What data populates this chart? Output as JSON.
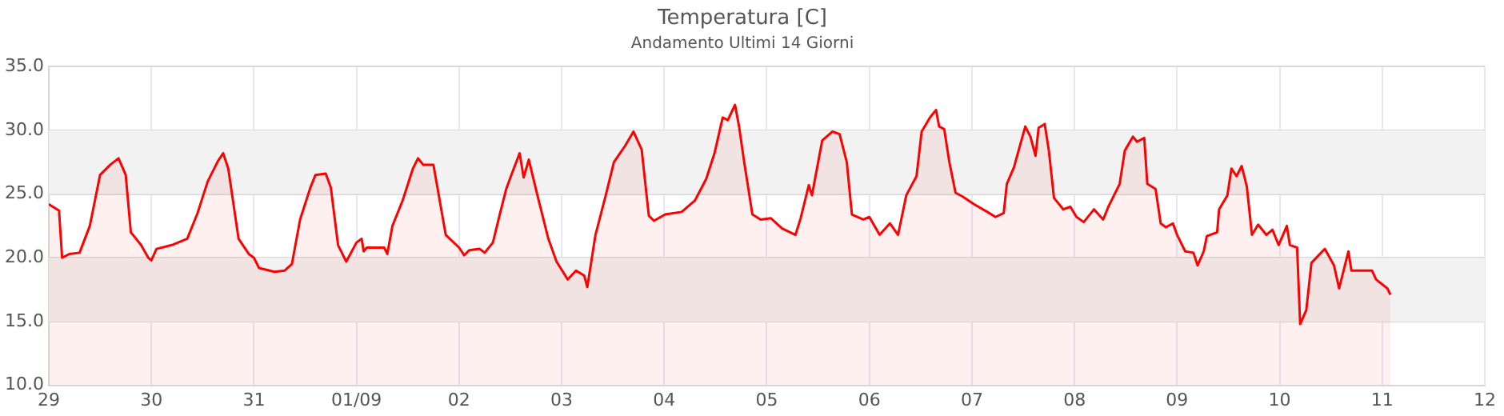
{
  "chart_data": {
    "type": "area",
    "title": "Temperatura [C]",
    "subtitle": "Andamento Ultimi 14 Giorni",
    "x": [
      "--08-29T00:00",
      "--08-29T02:24",
      "--08-29T03:07",
      "--08-29T04:48",
      "--08-29T07:12",
      "--08-29T09:36",
      "--08-29T12:00",
      "--08-29T14:24",
      "--08-29T16:19",
      "--08-29T18:00",
      "--08-29T19:12",
      "--08-29T21:36",
      "--08-29T23:17",
      "--08-30T00:00",
      "--08-30T01:12",
      "--08-30T04:48",
      "--08-30T08:24",
      "--08-30T10:48",
      "--08-30T13:12",
      "--08-30T15:36",
      "--08-30T16:48",
      "--08-30T18:00",
      "--08-30T20:24",
      "--08-30T22:48",
      "--08-31T00:00",
      "--08-31T01:12",
      "--08-31T04:48",
      "--08-31T07:12",
      "--08-31T08:53",
      "--08-31T10:48",
      "--08-31T13:12",
      "--08-31T14:24",
      "--08-31T16:48",
      "--08-31T18:00",
      "--08-31T19:41",
      "--08-31T21:36",
      "--09-01T00:00",
      "--09-01T01:12",
      "--09-01T01:41",
      "--09-01T02:24",
      "--09-01T06:29",
      "--09-01T07:12",
      "--09-01T08:24",
      "--09-01T10:48",
      "--09-01T13:12",
      "--09-01T14:24",
      "--09-01T15:36",
      "--09-01T18:00",
      "--09-01T19:12",
      "--09-01T20:53",
      "--09-02T00:00",
      "--09-02T01:12",
      "--09-02T02:24",
      "--09-02T04:48",
      "--09-02T06:00",
      "--09-02T07:55",
      "--09-02T09:36",
      "--09-02T11:02",
      "--09-02T12:14",
      "--09-02T14:10",
      "--09-02T15:07",
      "--09-02T16:19",
      "--09-02T18:29",
      "--09-02T20:53",
      "--09-02T22:48",
      "--09-03T01:26",
      "--09-03T03:22",
      "--09-03T05:17",
      "--09-03T06:00",
      "--09-03T07:55",
      "--09-03T10:19",
      "--09-03T12:14",
      "--09-03T14:53",
      "--09-03T16:48",
      "--09-03T18:43",
      "--09-03T20:24",
      "--09-03T21:36",
      "--09-04T00:14",
      "--09-04T04:05",
      "--09-04T07:12",
      "--09-04T09:50",
      "--09-04T11:46",
      "--09-04T13:41",
      "--09-04T14:53",
      "--09-04T16:34",
      "--09-04T17:31",
      "--09-04T18:43",
      "--09-04T20:38",
      "--09-04T22:34",
      "--09-05T00:58",
      "--09-05T03:36",
      "--09-05T06:43",
      "--09-05T07:55",
      "--09-05T09:50",
      "--09-05T10:34",
      "--09-05T12:58",
      "--09-05T15:22",
      "--09-05T17:02",
      "--09-05T18:43",
      "--09-05T19:55",
      "--09-05T22:34",
      "--09-06T00:00",
      "--09-06T02:24",
      "--09-06T04:48",
      "--09-06T06:43",
      "--09-06T08:38",
      "--09-06T11:02",
      "--09-06T12:14",
      "--09-06T14:10",
      "--09-06T15:36",
      "--09-06T16:19",
      "--09-06T17:31",
      "--09-06T18:43",
      "--09-06T20:10",
      "--09-06T21:50",
      "--09-07T00:29",
      "--09-07T03:36",
      "--09-07T05:31",
      "--09-07T07:26",
      "--09-07T08:10",
      "--09-07T09:50",
      "--09-07T12:29",
      "--09-07T13:41",
      "--09-07T14:53",
      "--09-07T15:36",
      "--09-07T17:02",
      "--09-07T18:00",
      "--09-07T19:12",
      "--09-07T21:22",
      "--09-07T23:02",
      "--09-08T00:29",
      "--09-08T02:10",
      "--09-08T04:34",
      "--09-08T06:43",
      "--09-08T07:55",
      "--09-08T10:34",
      "--09-08T11:46",
      "--09-08T13:41",
      "--09-08T14:38",
      "--09-08T16:19",
      "--09-08T17:02",
      "--09-08T18:58",
      "--09-08T20:10",
      "--09-08T21:22",
      "--09-08T23:02",
      "--09-09T00:00",
      "--09-09T01:55",
      "--09-09T03:50",
      "--09-09T04:48",
      "--09-09T06:14",
      "--09-09T06:58",
      "--09-09T09:22",
      "--09-09T09:50",
      "--09-09T11:46",
      "--09-09T12:43",
      "--09-09T13:55",
      "--09-09T15:07",
      "--09-09T16:19",
      "--09-09T17:31",
      "--09-09T18:58",
      "--09-09T20:53",
      "--09-09T22:19",
      "--09-09T23:46",
      "--09-10T01:41",
      "--09-10T02:24",
      "--09-10T04:05",
      "--09-10T04:48",
      "--09-10T06:14",
      "--09-10T07:26",
      "--09-10T10:34",
      "--09-10T12:43",
      "--09-10T13:55",
      "--09-10T16:05",
      "--09-10T16:48",
      "--09-10T21:36",
      "--09-10T22:34",
      "--09-11T01:12",
      "--09-11T01:55"
    ],
    "series": [
      {
        "color": "#ff0000",
        "values": [
          24.2,
          23.7,
          20.0,
          20.3,
          20.4,
          22.5,
          26.5,
          27.3,
          27.8,
          26.5,
          22.0,
          21.0,
          20.0,
          19.8,
          20.7,
          21.0,
          21.5,
          23.5,
          26.0,
          27.6,
          28.2,
          27.0,
          21.5,
          20.3,
          20.0,
          19.2,
          18.9,
          19.0,
          19.5,
          23.0,
          25.5,
          26.5,
          26.6,
          25.5,
          21.0,
          19.7,
          21.2,
          21.5,
          20.5,
          20.8,
          20.8,
          20.3,
          22.5,
          24.5,
          27.0,
          27.8,
          27.3,
          27.3,
          25.0,
          21.8,
          20.8,
          20.2,
          20.6,
          20.7,
          20.4,
          21.2,
          23.5,
          25.4,
          26.5,
          28.2,
          26.3,
          27.7,
          24.7,
          21.5,
          19.7,
          18.3,
          19.0,
          18.6,
          17.7,
          21.8,
          24.9,
          27.5,
          28.8,
          29.9,
          28.5,
          23.3,
          22.9,
          23.4,
          23.6,
          24.5,
          26.2,
          28.2,
          31.0,
          30.8,
          32.0,
          30.3,
          27.5,
          23.4,
          23.0,
          23.1,
          22.3,
          21.8,
          23.1,
          25.7,
          24.9,
          29.2,
          29.9,
          29.7,
          27.5,
          23.4,
          23.0,
          23.2,
          21.8,
          22.7,
          21.8,
          24.9,
          26.4,
          29.9,
          31.0,
          31.6,
          30.3,
          30.1,
          27.5,
          25.1,
          24.8,
          24.2,
          23.6,
          23.2,
          23.5,
          25.8,
          27.1,
          30.3,
          29.5,
          28.0,
          30.2,
          30.5,
          28.4,
          24.7,
          23.8,
          24.0,
          23.2,
          22.8,
          23.8,
          23.0,
          24.0,
          25.8,
          28.4,
          29.5,
          29.1,
          29.4,
          25.8,
          25.4,
          22.7,
          22.4,
          22.7,
          21.8,
          20.5,
          20.4,
          19.4,
          20.5,
          21.7,
          22.0,
          23.8,
          24.9,
          27.0,
          26.4,
          27.2,
          25.6,
          21.8,
          22.6,
          21.8,
          22.2,
          21.0,
          22.5,
          21.0,
          20.8,
          14.8,
          15.9,
          19.6,
          20.7,
          19.4,
          17.6,
          20.5,
          19.0,
          19.0,
          18.3,
          17.6,
          17.1
        ]
      }
    ],
    "xlim": [
      "--08-29",
      "--09-12"
    ],
    "xticks": [
      {
        "value": "--08-29",
        "label": "29"
      },
      {
        "value": "--08-30",
        "label": "30"
      },
      {
        "value": "--08-31",
        "label": "31"
      },
      {
        "value": "--09-01",
        "label": "01/09"
      },
      {
        "value": "--09-02",
        "label": "02"
      },
      {
        "value": "--09-03",
        "label": "03"
      },
      {
        "value": "--09-04",
        "label": "04"
      },
      {
        "value": "--09-05",
        "label": "05"
      },
      {
        "value": "--09-06",
        "label": "06"
      },
      {
        "value": "--09-07",
        "label": "07"
      },
      {
        "value": "--09-08",
        "label": "08"
      },
      {
        "value": "--09-09",
        "label": "09"
      },
      {
        "value": "--09-10",
        "label": "10"
      },
      {
        "value": "--09-11",
        "label": "11"
      },
      {
        "value": "--09-12",
        "label": "12"
      }
    ],
    "ylim": [
      10,
      35
    ],
    "yticks": [
      {
        "value": 10,
        "label": "10.0"
      },
      {
        "value": 15,
        "label": "15.0"
      },
      {
        "value": 20,
        "label": "20.0"
      },
      {
        "value": 25,
        "label": "25.0"
      },
      {
        "value": 30,
        "label": "30.0"
      },
      {
        "value": 35,
        "label": "35.0"
      }
    ],
    "bands": [
      {
        "axis": "y",
        "from": 15,
        "to": 20,
        "color": "#f2f2f2"
      },
      {
        "axis": "y",
        "from": 25,
        "to": 30,
        "color": "#f2f2f2"
      }
    ],
    "grid": true
  }
}
